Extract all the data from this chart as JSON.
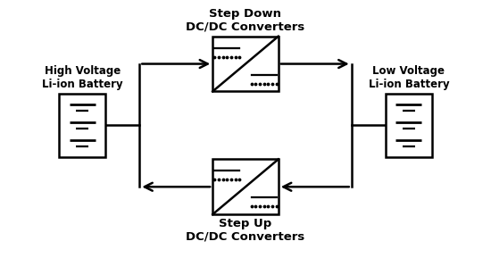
{
  "bg_color": "#ffffff",
  "fig_width": 5.5,
  "fig_height": 2.89,
  "dpi": 100,
  "left_battery_label": "High Voltage\nLi-ion Battery",
  "right_battery_label": "Low Voltage\nLi-ion Battery",
  "top_converter_label": "Step Down\nDC/DC Converters",
  "bottom_converter_label": "Step Up\nDC/DC Converters",
  "font_size_label": 9.5,
  "font_size_battery": 8.5,
  "line_color": "#000000",
  "lw": 1.8
}
